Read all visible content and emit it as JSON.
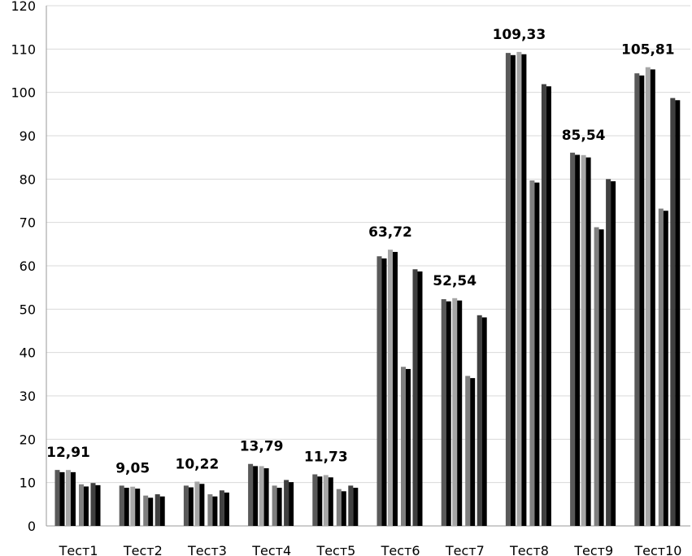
{
  "chart_data": {
    "type": "bar",
    "title": "",
    "xlabel": "",
    "ylabel": "",
    "ylim": [
      0,
      120
    ],
    "yticks": [
      0,
      10,
      20,
      30,
      40,
      50,
      60,
      70,
      80,
      90,
      100,
      110,
      120
    ],
    "grid": true,
    "legend": "none",
    "categories": [
      "Тест1",
      "Тест2",
      "Тест3",
      "Тест4",
      "Тест5",
      "Тест6",
      "Тест7",
      "Тест8",
      "Тест9",
      "Тест10"
    ],
    "colors": [
      "#595959",
      "#000000",
      "#a6a6a6",
      "#000000",
      "#7f7f7f",
      "#000000",
      "#404040",
      "#000000"
    ],
    "series": [
      {
        "values": [
          12.91,
          9.3,
          9.3,
          14.3,
          11.9,
          62.2,
          52.3,
          109.1,
          86.1,
          104.4
        ]
      },
      {
        "values": [
          12.4,
          8.8,
          8.9,
          13.8,
          11.4,
          61.7,
          51.8,
          108.6,
          85.6,
          103.9
        ]
      },
      {
        "values": [
          12.9,
          9.05,
          10.22,
          13.79,
          11.73,
          63.72,
          52.54,
          109.33,
          85.54,
          105.81
        ]
      },
      {
        "values": [
          12.4,
          8.6,
          9.7,
          13.3,
          11.2,
          63.2,
          52.0,
          108.8,
          85.0,
          105.3
        ]
      },
      {
        "values": [
          9.6,
          7.0,
          7.3,
          9.3,
          8.5,
          36.7,
          34.6,
          79.7,
          68.9,
          73.2
        ]
      },
      {
        "values": [
          9.1,
          6.5,
          6.8,
          8.8,
          8.0,
          36.2,
          34.1,
          79.2,
          68.4,
          72.7
        ]
      },
      {
        "values": [
          9.9,
          7.3,
          8.2,
          10.6,
          9.3,
          59.2,
          48.6,
          101.9,
          80.0,
          98.7
        ]
      },
      {
        "values": [
          9.4,
          6.8,
          7.7,
          10.1,
          8.8,
          58.7,
          48.1,
          101.4,
          79.5,
          98.2
        ]
      }
    ],
    "data_labels": [
      "12,91",
      "9,05",
      "10,22",
      "13,79",
      "11,73",
      "63,72",
      "52,54",
      "109,33",
      "85,54",
      "105,81"
    ]
  }
}
